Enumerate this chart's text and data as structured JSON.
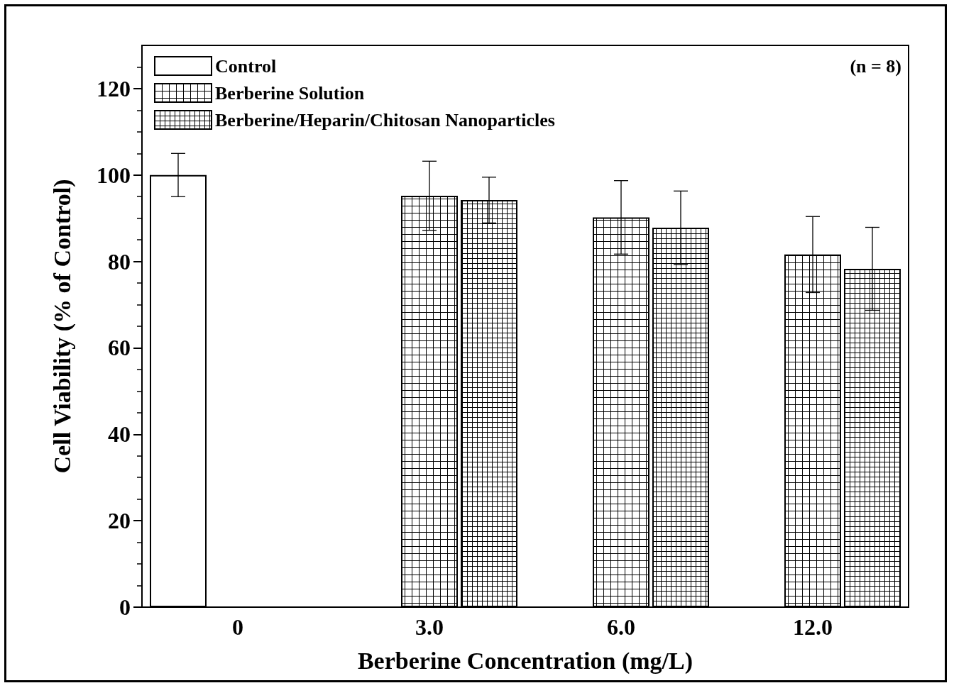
{
  "chart_data": {
    "type": "bar",
    "xlabel": "Berberine Concentration (mg/L)",
    "ylabel": "Cell Viability (% of Control)",
    "annotations": [
      "(n = 8)"
    ],
    "categories": [
      "0",
      "3.0",
      "6.0",
      "12.0"
    ],
    "series": [
      {
        "name": "Control",
        "color": "#ffffff",
        "values": [
          100,
          null,
          null,
          null
        ],
        "errors": [
          5,
          null,
          null,
          null
        ]
      },
      {
        "name": "Berberine Solution",
        "color": "#000000",
        "values": [
          null,
          95.2,
          90.2,
          81.6
        ],
        "errors": [
          null,
          8,
          8.5,
          8.8
        ]
      },
      {
        "name": "Berberine/Heparin/Chitosan Nanoparticles",
        "color": "#000000",
        "values": [
          null,
          94.2,
          87.8,
          78.3
        ],
        "errors": [
          null,
          5.3,
          8.5,
          9.6
        ]
      }
    ],
    "ylim": [
      0,
      130
    ],
    "yticks": [
      0,
      20,
      40,
      60,
      80,
      100,
      120
    ],
    "grid": false,
    "legend": "top left"
  }
}
